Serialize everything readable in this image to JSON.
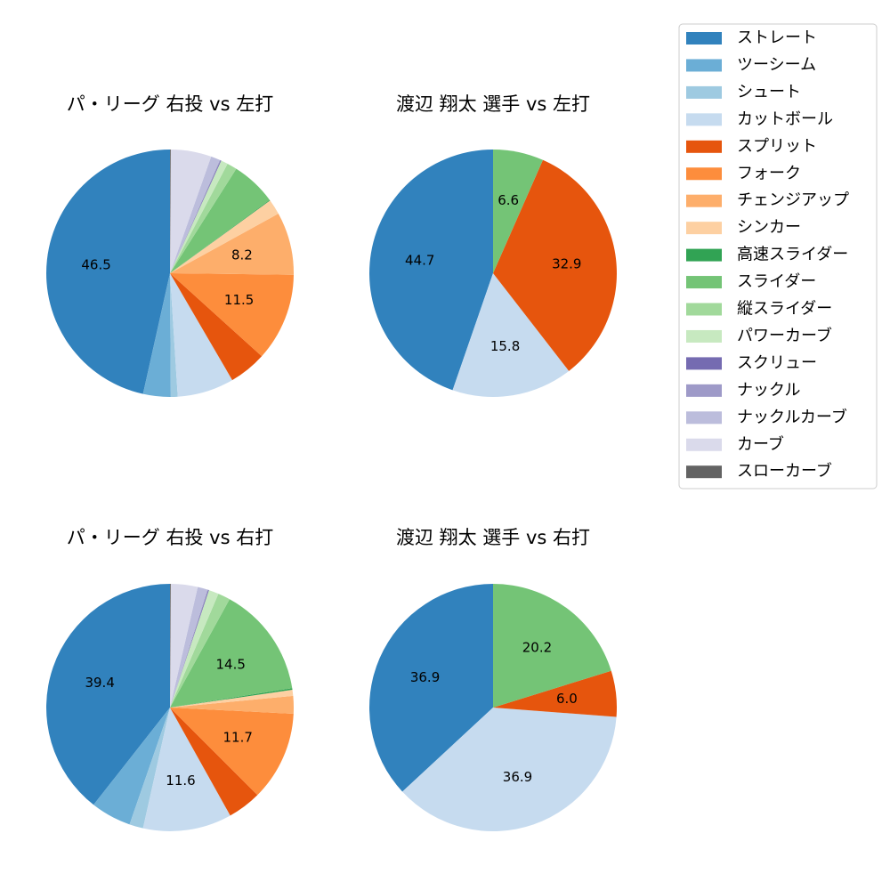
{
  "chart_data": [
    {
      "type": "pie",
      "title": "パ・リーグ 右投 vs 左打",
      "slices": [
        {
          "name": "ストレート",
          "value": 46.5,
          "label": "46.5"
        },
        {
          "name": "ツーシーム",
          "value": 3.6,
          "label": ""
        },
        {
          "name": "シュート",
          "value": 0.9,
          "label": ""
        },
        {
          "name": "カットボール",
          "value": 7.4,
          "label": ""
        },
        {
          "name": "スプリット",
          "value": 4.9,
          "label": ""
        },
        {
          "name": "フォーク",
          "value": 11.5,
          "label": "11.5"
        },
        {
          "name": "チェンジアップ",
          "value": 8.2,
          "label": "8.2"
        },
        {
          "name": "シンカー",
          "value": 2.0,
          "label": ""
        },
        {
          "name": "高速スライダー",
          "value": 0.1,
          "label": ""
        },
        {
          "name": "スライダー",
          "value": 5.9,
          "label": ""
        },
        {
          "name": "縦スライダー",
          "value": 1.3,
          "label": ""
        },
        {
          "name": "パワーカーブ",
          "value": 0.9,
          "label": ""
        },
        {
          "name": "スクリュー",
          "value": 0.1,
          "label": ""
        },
        {
          "name": "ナックル",
          "value": 0.1,
          "label": ""
        },
        {
          "name": "ナックルカーブ",
          "value": 1.2,
          "label": ""
        },
        {
          "name": "カーブ",
          "value": 5.3,
          "label": ""
        },
        {
          "name": "スローカーブ",
          "value": 0.1,
          "label": ""
        }
      ]
    },
    {
      "type": "pie",
      "title": "渡辺 翔太 選手 vs 左打",
      "slices": [
        {
          "name": "ストレート",
          "value": 44.7,
          "label": "44.7"
        },
        {
          "name": "カットボール",
          "value": 15.8,
          "label": "15.8"
        },
        {
          "name": "スプリット",
          "value": 32.9,
          "label": "32.9"
        },
        {
          "name": "スライダー",
          "value": 6.6,
          "label": "6.6"
        }
      ]
    },
    {
      "type": "pie",
      "title": "パ・リーグ 右投 vs 右打",
      "slices": [
        {
          "name": "ストレート",
          "value": 39.4,
          "label": "39.4"
        },
        {
          "name": "ツーシーム",
          "value": 5.3,
          "label": ""
        },
        {
          "name": "シュート",
          "value": 1.8,
          "label": ""
        },
        {
          "name": "カットボール",
          "value": 11.6,
          "label": "11.6"
        },
        {
          "name": "スプリット",
          "value": 4.4,
          "label": ""
        },
        {
          "name": "フォーク",
          "value": 11.7,
          "label": "11.7"
        },
        {
          "name": "チェンジアップ",
          "value": 2.3,
          "label": ""
        },
        {
          "name": "シンカー",
          "value": 0.8,
          "label": ""
        },
        {
          "name": "高速スライダー",
          "value": 0.2,
          "label": ""
        },
        {
          "name": "スライダー",
          "value": 14.5,
          "label": "14.5"
        },
        {
          "name": "縦スライダー",
          "value": 1.6,
          "label": ""
        },
        {
          "name": "パワーカーブ",
          "value": 1.3,
          "label": ""
        },
        {
          "name": "スクリュー",
          "value": 0.1,
          "label": ""
        },
        {
          "name": "ナックル",
          "value": 0.1,
          "label": ""
        },
        {
          "name": "ナックルカーブ",
          "value": 1.3,
          "label": ""
        },
        {
          "name": "カーブ",
          "value": 3.5,
          "label": ""
        },
        {
          "name": "スローカーブ",
          "value": 0.1,
          "label": ""
        }
      ]
    },
    {
      "type": "pie",
      "title": "渡辺 翔太 選手 vs 右打",
      "slices": [
        {
          "name": "ストレート",
          "value": 36.9,
          "label": "36.9"
        },
        {
          "name": "カットボール",
          "value": 36.9,
          "label": "36.9"
        },
        {
          "name": "スプリット",
          "value": 6.0,
          "label": "6.0"
        },
        {
          "name": "スライダー",
          "value": 20.2,
          "label": "20.2"
        }
      ]
    }
  ],
  "legend": {
    "placement": "top-right",
    "items": [
      {
        "name": "ストレート",
        "color": "#3182bd"
      },
      {
        "name": "ツーシーム",
        "color": "#6baed6"
      },
      {
        "name": "シュート",
        "color": "#9ecae1"
      },
      {
        "name": "カットボール",
        "color": "#c6dbef"
      },
      {
        "name": "スプリット",
        "color": "#e6550d"
      },
      {
        "name": "フォーク",
        "color": "#fd8d3c"
      },
      {
        "name": "チェンジアップ",
        "color": "#fdae6b"
      },
      {
        "name": "シンカー",
        "color": "#fdd0a2"
      },
      {
        "name": "高速スライダー",
        "color": "#31a354"
      },
      {
        "name": "スライダー",
        "color": "#74c476"
      },
      {
        "name": "縦スライダー",
        "color": "#a1d99b"
      },
      {
        "name": "パワーカーブ",
        "color": "#c7e9c0"
      },
      {
        "name": "スクリュー",
        "color": "#756bb1"
      },
      {
        "name": "ナックル",
        "color": "#9e9ac8"
      },
      {
        "name": "ナックルカーブ",
        "color": "#bcbddc"
      },
      {
        "name": "カーブ",
        "color": "#dadaeb"
      },
      {
        "name": "スローカーブ",
        "color": "#636363"
      }
    ]
  }
}
